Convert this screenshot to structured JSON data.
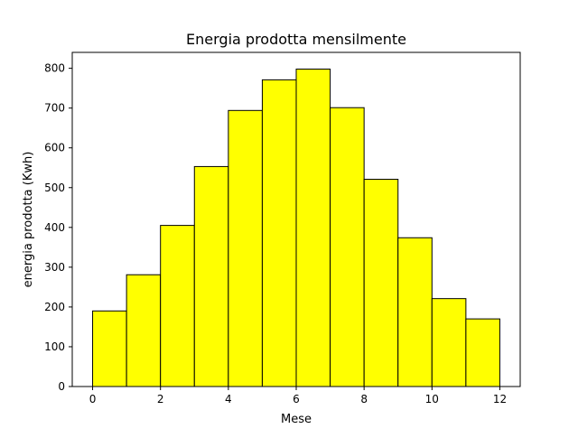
{
  "chart_data": {
    "type": "bar",
    "title": "Energia prodotta mensilmente",
    "xlabel": "Mese",
    "ylabel": "energia prodotta (Kwh)",
    "xlim": [
      -0.6,
      12.6
    ],
    "ylim": [
      0,
      840
    ],
    "xticks": [
      0,
      2,
      4,
      6,
      8,
      10,
      12
    ],
    "yticks": [
      0,
      100,
      200,
      300,
      400,
      500,
      600,
      700,
      800
    ],
    "bins": [
      {
        "x0": 0,
        "x1": 1,
        "value": 190
      },
      {
        "x0": 1,
        "x1": 2,
        "value": 281
      },
      {
        "x0": 2,
        "x1": 3,
        "value": 405
      },
      {
        "x0": 3,
        "x1": 4,
        "value": 553
      },
      {
        "x0": 4,
        "x1": 5,
        "value": 694
      },
      {
        "x0": 5,
        "x1": 6,
        "value": 771
      },
      {
        "x0": 6,
        "x1": 7,
        "value": 798
      },
      {
        "x0": 7,
        "x1": 8,
        "value": 701
      },
      {
        "x0": 8,
        "x1": 9,
        "value": 521
      },
      {
        "x0": 9,
        "x1": 10,
        "value": 374
      },
      {
        "x0": 10,
        "x1": 11,
        "value": 221
      },
      {
        "x0": 11,
        "x1": 12,
        "value": 170
      }
    ],
    "bar_color": "#ffff00",
    "edge_color": "#000000",
    "grid": false,
    "legend": "none"
  }
}
